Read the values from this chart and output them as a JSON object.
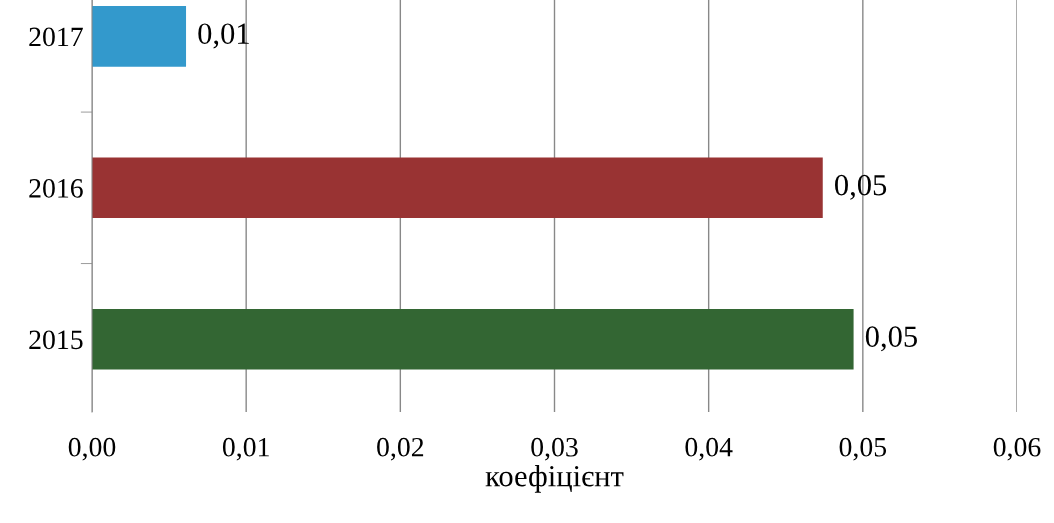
{
  "chart_data": {
    "type": "bar",
    "orientation": "horizontal",
    "xlabel": "коефіцієнт",
    "categories": [
      "2017",
      "2016",
      "2015"
    ],
    "values": [
      0.0061,
      0.0474,
      0.0494
    ],
    "colors": [
      "#3399cc",
      "#993333",
      "#336633"
    ],
    "value_labels": [
      "0,01",
      "0,05",
      "0,05"
    ],
    "xlim": [
      0,
      0.06
    ],
    "xticks": [
      {
        "value": 0,
        "label": "0,00"
      },
      {
        "value": 0.01,
        "label": "0,01"
      },
      {
        "value": 0.02,
        "label": "0,02"
      },
      {
        "value": 0.03,
        "label": "0,03"
      },
      {
        "value": 0.04,
        "label": "0,04"
      },
      {
        "value": 0.05,
        "label": "0,05"
      },
      {
        "value": 0.06,
        "label": "0,06"
      }
    ],
    "grid": "x",
    "legend": false
  }
}
